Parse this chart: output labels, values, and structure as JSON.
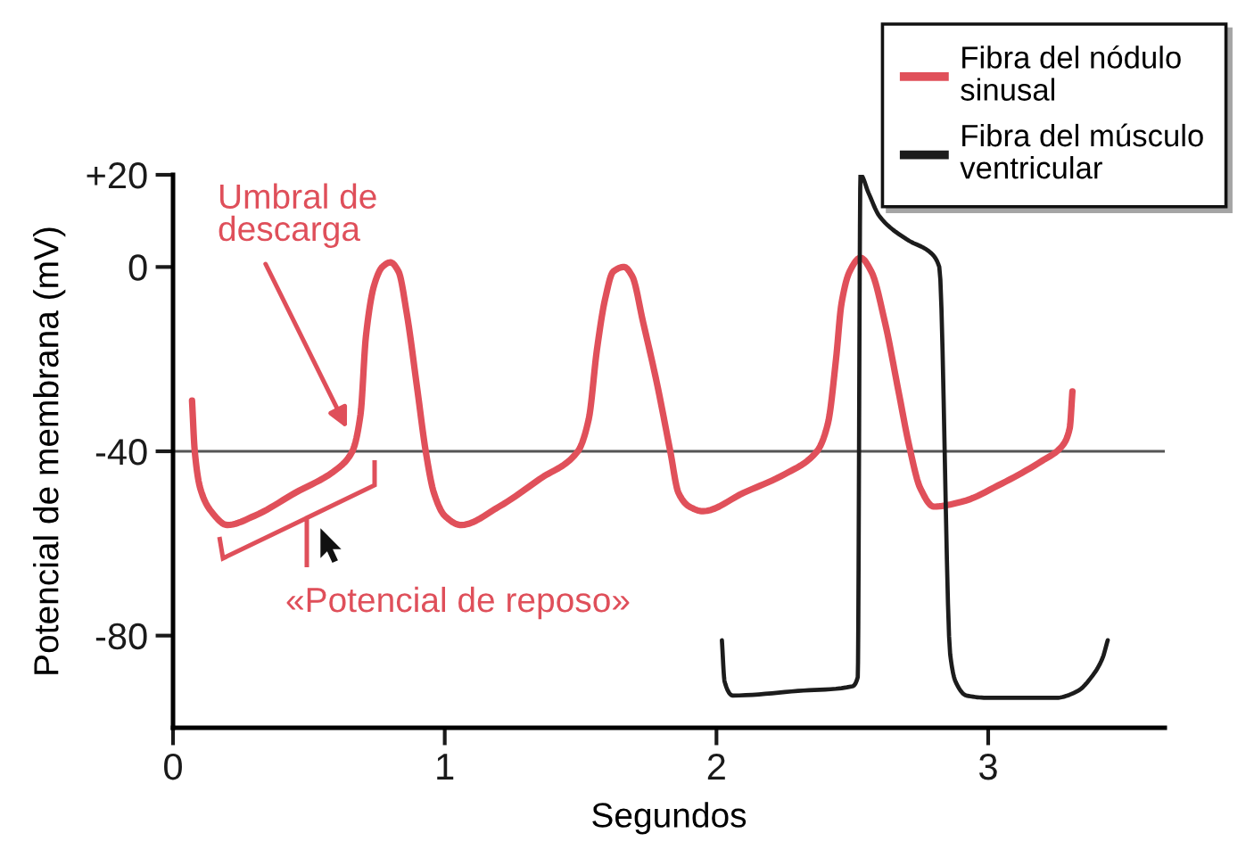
{
  "chart_data": {
    "type": "line",
    "xlabel": "Segundos",
    "ylabel": "Potencial de membrana (mV)",
    "series": [
      {
        "name": "Fibra del nódulo\nsinusal",
        "color": "#e0505a",
        "x": [
          0.07,
          0.08,
          0.1,
          0.14,
          0.2,
          0.3,
          0.45,
          0.6,
          0.66,
          0.69,
          0.71,
          0.74,
          0.77,
          0.8,
          0.83,
          0.86,
          0.9,
          0.93,
          0.96,
          1.0,
          1.06,
          1.2,
          1.35,
          1.49,
          1.53,
          1.56,
          1.59,
          1.62,
          1.66,
          1.69,
          1.73,
          1.78,
          1.83,
          1.86,
          1.9,
          1.95,
          2.1,
          2.25,
          2.37,
          2.41,
          2.44,
          2.46,
          2.49,
          2.53,
          2.57,
          2.62,
          2.67,
          2.71,
          2.75,
          2.8,
          2.9,
          3.05,
          3.2,
          3.27,
          3.3,
          3.31
        ],
        "values": [
          -29,
          -40,
          -48,
          -53,
          -56,
          -54,
          -49,
          -44,
          -40,
          -32,
          -15,
          -4,
          0,
          1,
          -1,
          -10,
          -27,
          -40,
          -49,
          -54,
          -56,
          -52,
          -46,
          -40,
          -33,
          -18,
          -7,
          -1,
          0,
          -2,
          -12,
          -25,
          -40,
          -49,
          -52,
          -53,
          -49,
          -45,
          -40,
          -34,
          -20,
          -8,
          -1,
          2,
          -1,
          -12,
          -27,
          -39,
          -48,
          -52,
          -51,
          -47,
          -42,
          -39,
          -35,
          -27
        ]
      },
      {
        "name": "Fibra del músculo\nventricular",
        "color": "#1c1c1c",
        "x": [
          2.02,
          2.03,
          2.06,
          2.3,
          2.5,
          2.52,
          2.53,
          2.56,
          2.6,
          2.7,
          2.79,
          2.82,
          2.86,
          2.88,
          2.92,
          3.0,
          3.25,
          3.33,
          3.38,
          3.42,
          3.44
        ],
        "values": [
          -81,
          -90,
          -93,
          -92,
          -91,
          -89,
          20,
          16,
          11,
          6,
          3,
          0,
          -84,
          -90,
          -93,
          -93.5,
          -93.5,
          -92,
          -89,
          -85,
          -81
        ]
      }
    ],
    "xlim": [
      0,
      3.65
    ],
    "xticks": [
      0,
      1,
      2,
      3
    ],
    "ylim": [
      -100,
      20
    ],
    "yticks": [
      {
        "value": 20,
        "label": "+20"
      },
      0,
      -40,
      -80
    ],
    "ref_lines": [
      {
        "axis": "y",
        "value": -40,
        "color": "#555555"
      }
    ],
    "annotations": [
      {
        "text": "Umbral de\ndescarga",
        "x": 0.64,
        "y": -35
      },
      "«Potencial de reposo»"
    ],
    "grid": false,
    "legend": "top right",
    "line_style": "solid"
  }
}
